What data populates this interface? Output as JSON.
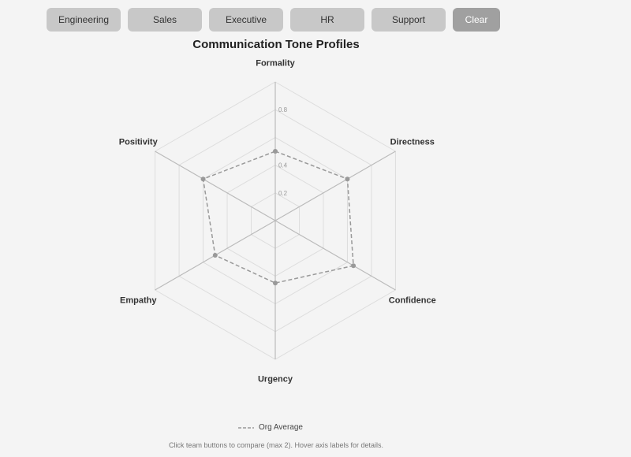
{
  "buttons": [
    "Engineering",
    "Sales",
    "Executive",
    "HR",
    "Support"
  ],
  "clear_label": "Clear",
  "chart_data": {
    "type": "radar",
    "title": "Communication Tone Profiles",
    "axes": [
      "Formality",
      "Directness",
      "Confidence",
      "Urgency",
      "Empathy",
      "Positivity"
    ],
    "range": [
      0,
      1
    ],
    "ticks": [
      0.2,
      0.4,
      0.6,
      0.8,
      1.0
    ],
    "tick_labels": [
      "0.2",
      "0.4",
      "0.8"
    ],
    "series": [
      {
        "name": "Org Average",
        "values": [
          0.5,
          0.6,
          0.65,
          0.45,
          0.5,
          0.6
        ],
        "color": "#999999",
        "style": "dashed"
      }
    ],
    "legend": "bottom"
  },
  "hint": "Click team buttons to compare (max 2). Hover axis labels for details."
}
